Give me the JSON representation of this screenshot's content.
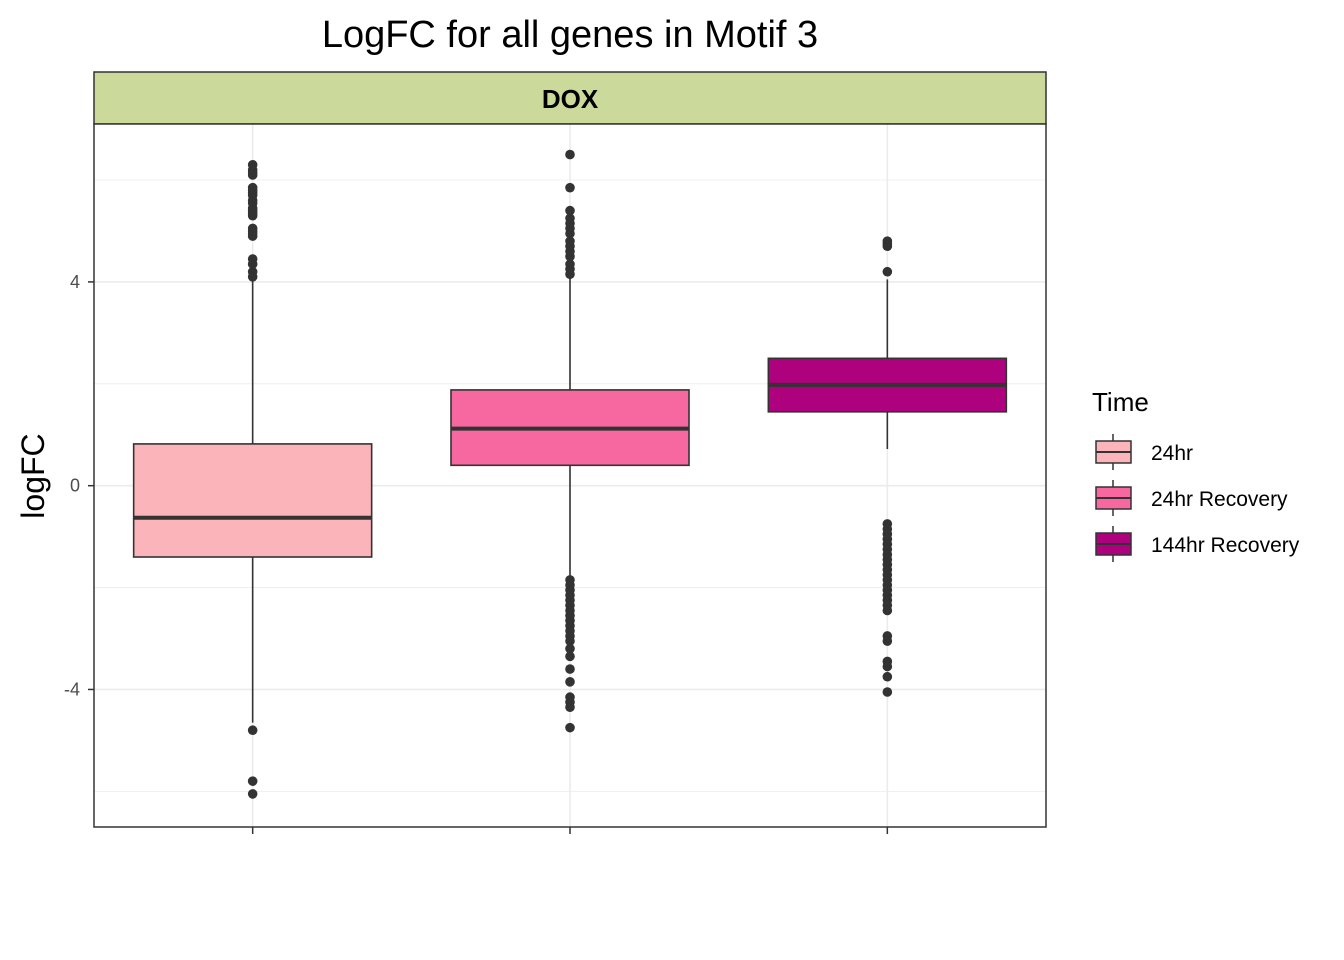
{
  "chart_data": {
    "type": "box",
    "title": "LogFC for all genes in Motif 3",
    "facet_label": "DOX",
    "xlabel": "",
    "ylabel": "logFC",
    "ylim": [
      -6.7,
      7.1
    ],
    "y_ticks": [
      -4,
      0,
      4
    ],
    "y_tick_labels": [
      "-4",
      "0",
      "4"
    ],
    "grid": true,
    "legend_title": "Time",
    "legend_position": "right",
    "series": [
      {
        "name": "24hr",
        "color": "#FBB4B9",
        "q1": -1.4,
        "median": -0.63,
        "q3": 0.82,
        "whisker_low": -4.65,
        "whisker_high": 4.2,
        "outliers": [
          4.1,
          4.2,
          4.35,
          4.45,
          4.9,
          4.95,
          5.0,
          5.05,
          5.3,
          5.35,
          5.4,
          5.45,
          5.55,
          5.6,
          5.7,
          5.75,
          5.8,
          5.85,
          6.1,
          6.15,
          6.2,
          6.3,
          -4.8,
          -5.8,
          -6.05
        ]
      },
      {
        "name": "24hr Recovery",
        "color": "#F768A1",
        "q1": 0.4,
        "median": 1.12,
        "q3": 1.88,
        "whisker_low": -1.8,
        "whisker_high": 4.1,
        "outliers": [
          4.15,
          4.25,
          4.35,
          4.5,
          4.6,
          4.7,
          4.8,
          4.95,
          5.05,
          5.15,
          5.25,
          5.4,
          5.85,
          6.5,
          -1.85,
          -1.95,
          -2.05,
          -2.15,
          -2.25,
          -2.35,
          -2.45,
          -2.55,
          -2.65,
          -2.75,
          -2.85,
          -2.95,
          -3.05,
          -3.2,
          -3.35,
          -3.6,
          -3.85,
          -4.15,
          -4.25,
          -4.35,
          -4.75
        ]
      },
      {
        "name": "144hr Recovery",
        "color": "#AE017E",
        "q1": 1.45,
        "median": 1.98,
        "q3": 2.5,
        "whisker_low": 0.72,
        "whisker_high": 4.05,
        "outliers": [
          4.2,
          4.7,
          4.75,
          4.8,
          -0.75,
          -0.85,
          -0.95,
          -1.05,
          -1.15,
          -1.25,
          -1.35,
          -1.45,
          -1.55,
          -1.65,
          -1.75,
          -1.85,
          -1.95,
          -2.05,
          -2.15,
          -2.25,
          -2.35,
          -2.45,
          -2.95,
          -3.05,
          -3.45,
          -3.55,
          -3.75,
          -4.05
        ]
      }
    ]
  }
}
